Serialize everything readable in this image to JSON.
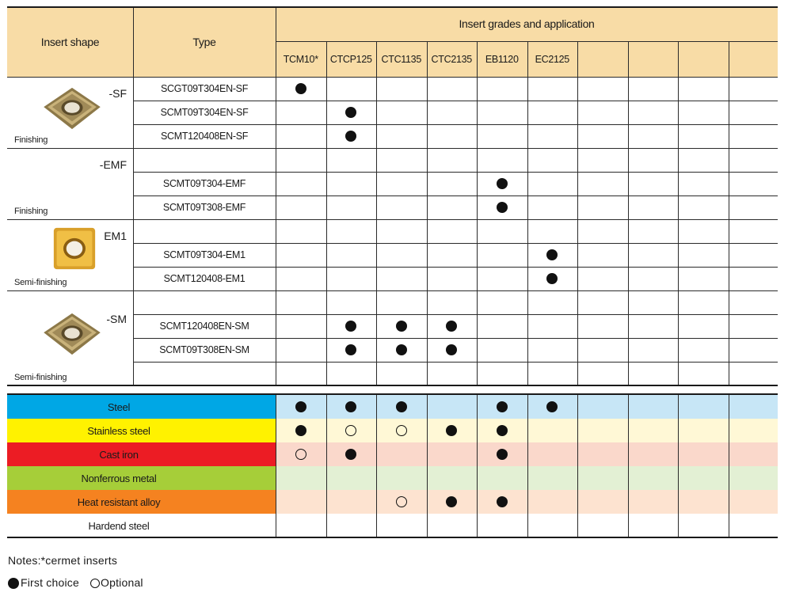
{
  "header": {
    "insert_shape": "Insert shape",
    "type": "Type",
    "grades_title": "Insert grades and application",
    "grades": [
      "TCM10*",
      "CTCP125",
      "CTC1135",
      "CTC2135",
      "EB1120",
      "EC2125",
      "",
      "",
      "",
      ""
    ]
  },
  "groups": [
    {
      "label": "-SF",
      "usage": "Finishing",
      "icon": "rhombic-insert-icon",
      "rows": [
        {
          "type": "SCGT09T304EN-SF",
          "marks": [
            "filled",
            "",
            "",
            "",
            "",
            "",
            "",
            "",
            "",
            ""
          ]
        },
        {
          "type": "SCMT09T304EN-SF",
          "marks": [
            "",
            "filled",
            "",
            "",
            "",
            "",
            "",
            "",
            "",
            ""
          ]
        },
        {
          "type": "SCMT120408EN-SF",
          "marks": [
            "",
            "filled",
            "",
            "",
            "",
            "",
            "",
            "",
            "",
            ""
          ]
        }
      ]
    },
    {
      "label": "-EMF",
      "usage": "Finishing",
      "icon": "",
      "rows": [
        {
          "type": "",
          "marks": [
            "",
            "",
            "",
            "",
            "",
            "",
            "",
            "",
            "",
            ""
          ]
        },
        {
          "type": "SCMT09T304-EMF",
          "marks": [
            "",
            "",
            "",
            "",
            "filled",
            "",
            "",
            "",
            "",
            ""
          ]
        },
        {
          "type": "SCMT09T308-EMF",
          "marks": [
            "",
            "",
            "",
            "",
            "filled",
            "",
            "",
            "",
            "",
            ""
          ]
        }
      ]
    },
    {
      "label": "EM1",
      "usage": "Semi-finishing",
      "icon": "square-insert-icon",
      "rows": [
        {
          "type": "",
          "marks": [
            "",
            "",
            "",
            "",
            "",
            "",
            "",
            "",
            "",
            ""
          ]
        },
        {
          "type": "SCMT09T304-EM1",
          "marks": [
            "",
            "",
            "",
            "",
            "",
            "filled",
            "",
            "",
            "",
            ""
          ]
        },
        {
          "type": "SCMT120408-EM1",
          "marks": [
            "",
            "",
            "",
            "",
            "",
            "filled",
            "",
            "",
            "",
            ""
          ]
        }
      ]
    },
    {
      "label": "-SM",
      "usage": "Semi-finishing",
      "icon": "rhombic-insert-icon",
      "rows": [
        {
          "type": "",
          "marks": [
            "",
            "",
            "",
            "",
            "",
            "",
            "",
            "",
            "",
            ""
          ]
        },
        {
          "type": "SCMT120408EN-SM",
          "marks": [
            "",
            "filled",
            "filled",
            "filled",
            "",
            "",
            "",
            "",
            "",
            ""
          ]
        },
        {
          "type": "SCMT09T308EN-SM",
          "marks": [
            "",
            "filled",
            "filled",
            "filled",
            "",
            "",
            "",
            "",
            "",
            ""
          ]
        },
        {
          "type": "",
          "marks": [
            "",
            "",
            "",
            "",
            "",
            "",
            "",
            "",
            "",
            ""
          ]
        }
      ]
    }
  ],
  "materials": [
    {
      "name": "Steel",
      "color": "#00a7e5",
      "tint": "#c7e6f6",
      "marks": [
        "filled",
        "filled",
        "filled",
        "",
        "filled",
        "filled",
        "",
        "",
        "",
        ""
      ]
    },
    {
      "name": "Stainless steel",
      "color": "#fff200",
      "tint": "#fff8d6",
      "marks": [
        "filled",
        "open",
        "open",
        "filled",
        "filled",
        "",
        "",
        "",
        "",
        ""
      ]
    },
    {
      "name": "Cast iron",
      "color": "#ec1c24",
      "tint": "#fad8cb",
      "marks": [
        "open",
        "filled",
        "",
        "",
        "filled",
        "",
        "",
        "",
        "",
        ""
      ]
    },
    {
      "name": "Nonferrous metal",
      "color": "#a6ce39",
      "tint": "#e3f0d4",
      "marks": [
        "",
        "",
        "",
        "",
        "",
        "",
        "",
        "",
        "",
        ""
      ]
    },
    {
      "name": "Heat resistant alloy",
      "color": "#f58220",
      "tint": "#fde3d0",
      "marks": [
        "",
        "",
        "open",
        "filled",
        "filled",
        "",
        "",
        "",
        "",
        ""
      ]
    },
    {
      "name": "Hardend steel",
      "color": "#ffffff",
      "tint": "#ffffff",
      "marks": [
        "",
        "",
        "",
        "",
        "",
        "",
        "",
        "",
        "",
        ""
      ]
    }
  ],
  "notes": {
    "line1": "Notes:*cermet inserts",
    "first_choice": "First choice",
    "optional": "Optional"
  }
}
